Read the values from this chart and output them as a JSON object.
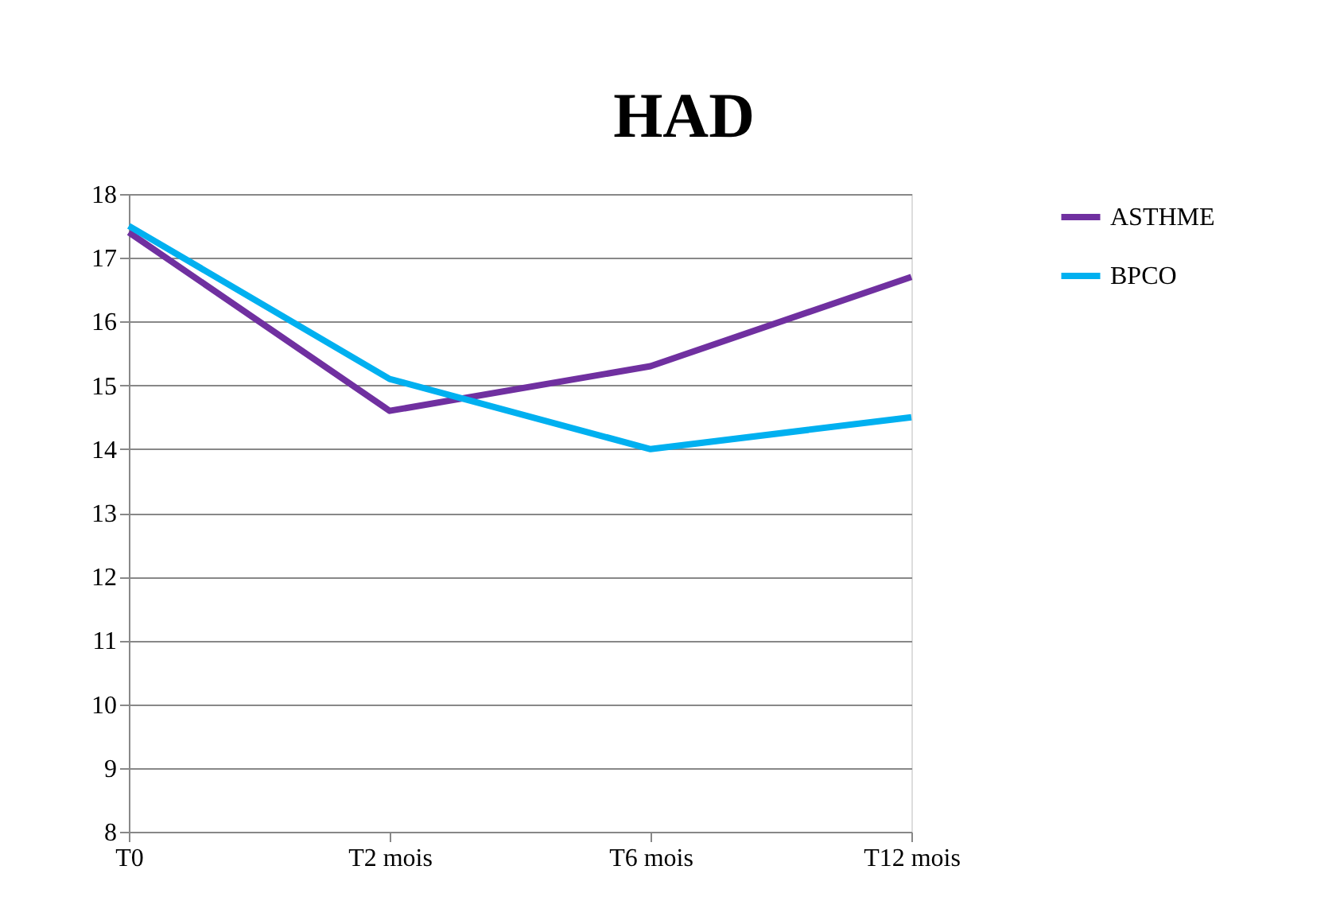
{
  "chart_data": {
    "type": "line",
    "title": "HAD",
    "categories": [
      "T0",
      "T2 mois",
      "T6 mois",
      "T12 mois"
    ],
    "series": [
      {
        "name": "ASTHME",
        "color": "#7030a0",
        "values": [
          17.4,
          14.6,
          15.3,
          16.7
        ]
      },
      {
        "name": "BPCO",
        "color": "#00b0f0",
        "values": [
          17.5,
          15.1,
          14.0,
          14.5
        ]
      }
    ],
    "ylim": [
      8,
      18
    ],
    "yticks": [
      8,
      9,
      10,
      11,
      12,
      13,
      14,
      15,
      16,
      17,
      18
    ],
    "grid": "y",
    "legend": "right",
    "marker": "none",
    "line_style": "solid"
  }
}
